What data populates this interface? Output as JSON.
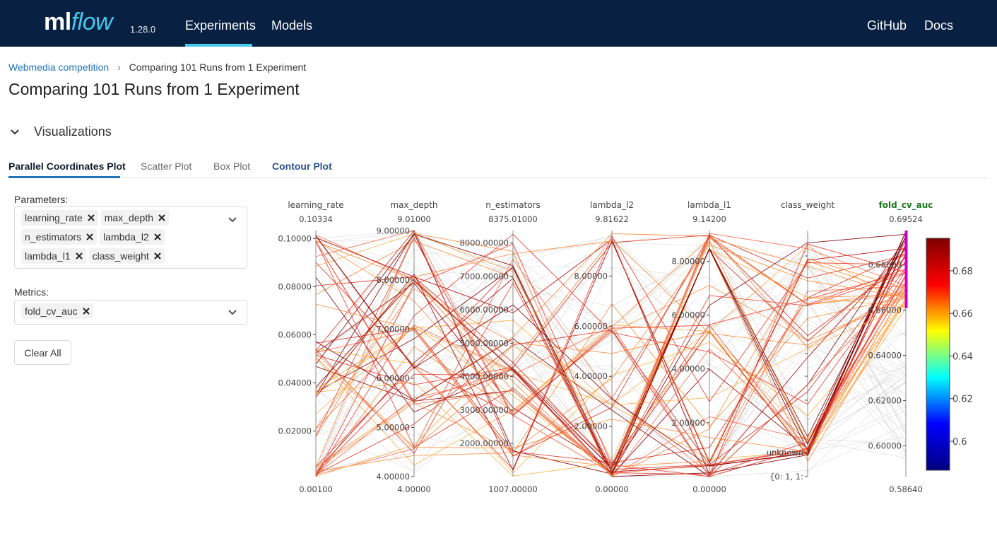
{
  "header": {
    "logo_ml": "ml",
    "logo_flow": "flow",
    "version": "1.28.0",
    "nav": [
      {
        "label": "Experiments",
        "active": true
      },
      {
        "label": "Models",
        "active": false
      }
    ],
    "right_nav": [
      {
        "label": "GitHub"
      },
      {
        "label": "Docs"
      }
    ],
    "accent_color": "#43c9ed",
    "bg_color": "#082142"
  },
  "breadcrumb": {
    "link": "Webmedia competition",
    "current": "Comparing 101 Runs from 1 Experiment"
  },
  "page_title": "Comparing 101 Runs from 1 Experiment",
  "section": {
    "title": "Visualizations",
    "expanded": true
  },
  "tabs": [
    {
      "label": "Parallel Coordinates Plot",
      "active": true
    },
    {
      "label": "Scatter Plot",
      "active": false
    },
    {
      "label": "Box Plot",
      "active": false
    },
    {
      "label": "Contour Plot",
      "active": false
    }
  ],
  "controls": {
    "parameters_label": "Parameters:",
    "parameters": [
      "learning_rate",
      "max_depth",
      "n_estimators",
      "lambda_l2",
      "lambda_l1",
      "class_weight"
    ],
    "metrics_label": "Metrics:",
    "metrics": [
      "fold_cv_auc"
    ],
    "clear_label": "Clear All"
  },
  "chart_data": {
    "type": "parallel_coordinates",
    "axes": [
      {
        "name": "learning_rate",
        "top_value": "0.10334",
        "bottom_value": "0.00100",
        "ticks": [
          "0.10000",
          "0.08000",
          "0.06000",
          "0.04000",
          "0.02000"
        ],
        "range": [
          0.001,
          0.10334
        ]
      },
      {
        "name": "max_depth",
        "top_value": "9.01000",
        "bottom_value": "4.00000",
        "ticks": [
          "9.00000",
          "8.00000",
          "7.00000",
          "6.00000",
          "5.00000",
          "4.00000"
        ],
        "range": [
          4,
          9.01
        ]
      },
      {
        "name": "n_estimators",
        "top_value": "8375.01000",
        "bottom_value": "1007.00000",
        "ticks": [
          "8000.00000",
          "7000.00000",
          "6000.00000",
          "5000.00000",
          "4000.00000",
          "3000.00000",
          "2000.00000"
        ],
        "range": [
          1007,
          8375.01
        ]
      },
      {
        "name": "lambda_l2",
        "top_value": "9.81622",
        "bottom_value": "0.00000",
        "ticks": [
          "8.00000",
          "6.00000",
          "4.00000",
          "2.00000"
        ],
        "range": [
          0,
          9.81622
        ]
      },
      {
        "name": "lambda_l1",
        "top_value": "9.14200",
        "bottom_value": "0.00000",
        "ticks": [
          "8.00000",
          "6.00000",
          "4.00000",
          "2.00000"
        ],
        "range": [
          0,
          9.142
        ]
      },
      {
        "name": "class_weight",
        "top_value": "",
        "bottom_value": "",
        "ticks": [
          "unknown",
          "{0: 1, 1:"
        ],
        "categorical": true
      },
      {
        "name": "fold_cv_auc",
        "top_value": "0.69524",
        "bottom_value": "0.58640",
        "ticks": [
          "0.68000",
          "0.66000",
          "0.64000",
          "0.62000",
          "0.60000"
        ],
        "range": [
          0.5864,
          0.69524
        ],
        "highlight": true,
        "constraint_range": [
          0.661,
          0.69524
        ]
      }
    ],
    "colorbar": {
      "ticks": [
        "0.68",
        "0.66",
        "0.64",
        "0.62",
        "0.6"
      ],
      "range": [
        0.5864,
        0.69524
      ],
      "colorscale": [
        "#00007f",
        "#0000ff",
        "#00ffff",
        "#ffff00",
        "#ff0000",
        "#7f0000"
      ]
    },
    "line_colors": [
      "#7f0000",
      "#b30000",
      "#d7301f",
      "#ef3b2c",
      "#fb6a4a",
      "#fd8d3c",
      "#feb24c",
      "#fdd835"
    ],
    "muted_color": "#d9d9d9",
    "highlight_color": "#cc00cc",
    "label_highlight_color": "#1a7a1a"
  }
}
